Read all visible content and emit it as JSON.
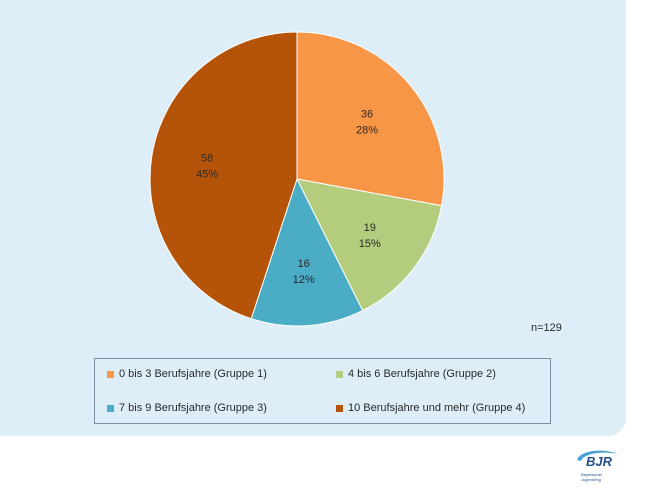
{
  "chart_data": {
    "type": "pie",
    "title": "",
    "n_label": "n=129",
    "total": 129,
    "slices": [
      {
        "label": "0 bis 3 Berufsjahre (Gruppe 1)",
        "value": 36,
        "percent": "28%",
        "color": "#f79646"
      },
      {
        "label": "4 bis 6 Berufsjahre (Gruppe 2)",
        "value": 19,
        "percent": "15%",
        "color": "#b3cc7e"
      },
      {
        "label": "7 bis 9 Berufsjahre (Gruppe 3)",
        "value": 16,
        "percent": "12%",
        "color": "#4bacc6"
      },
      {
        "label": "10 Berufsjahre und mehr (Gruppe 4)",
        "value": 58,
        "percent": "45%",
        "color": "#b55409"
      }
    ],
    "legend_placement": "bottom"
  },
  "logo": {
    "text": "BJR",
    "subtitle_1": "Bayerischer",
    "subtitle_2": "Jugendring",
    "color": "#244f8a"
  }
}
